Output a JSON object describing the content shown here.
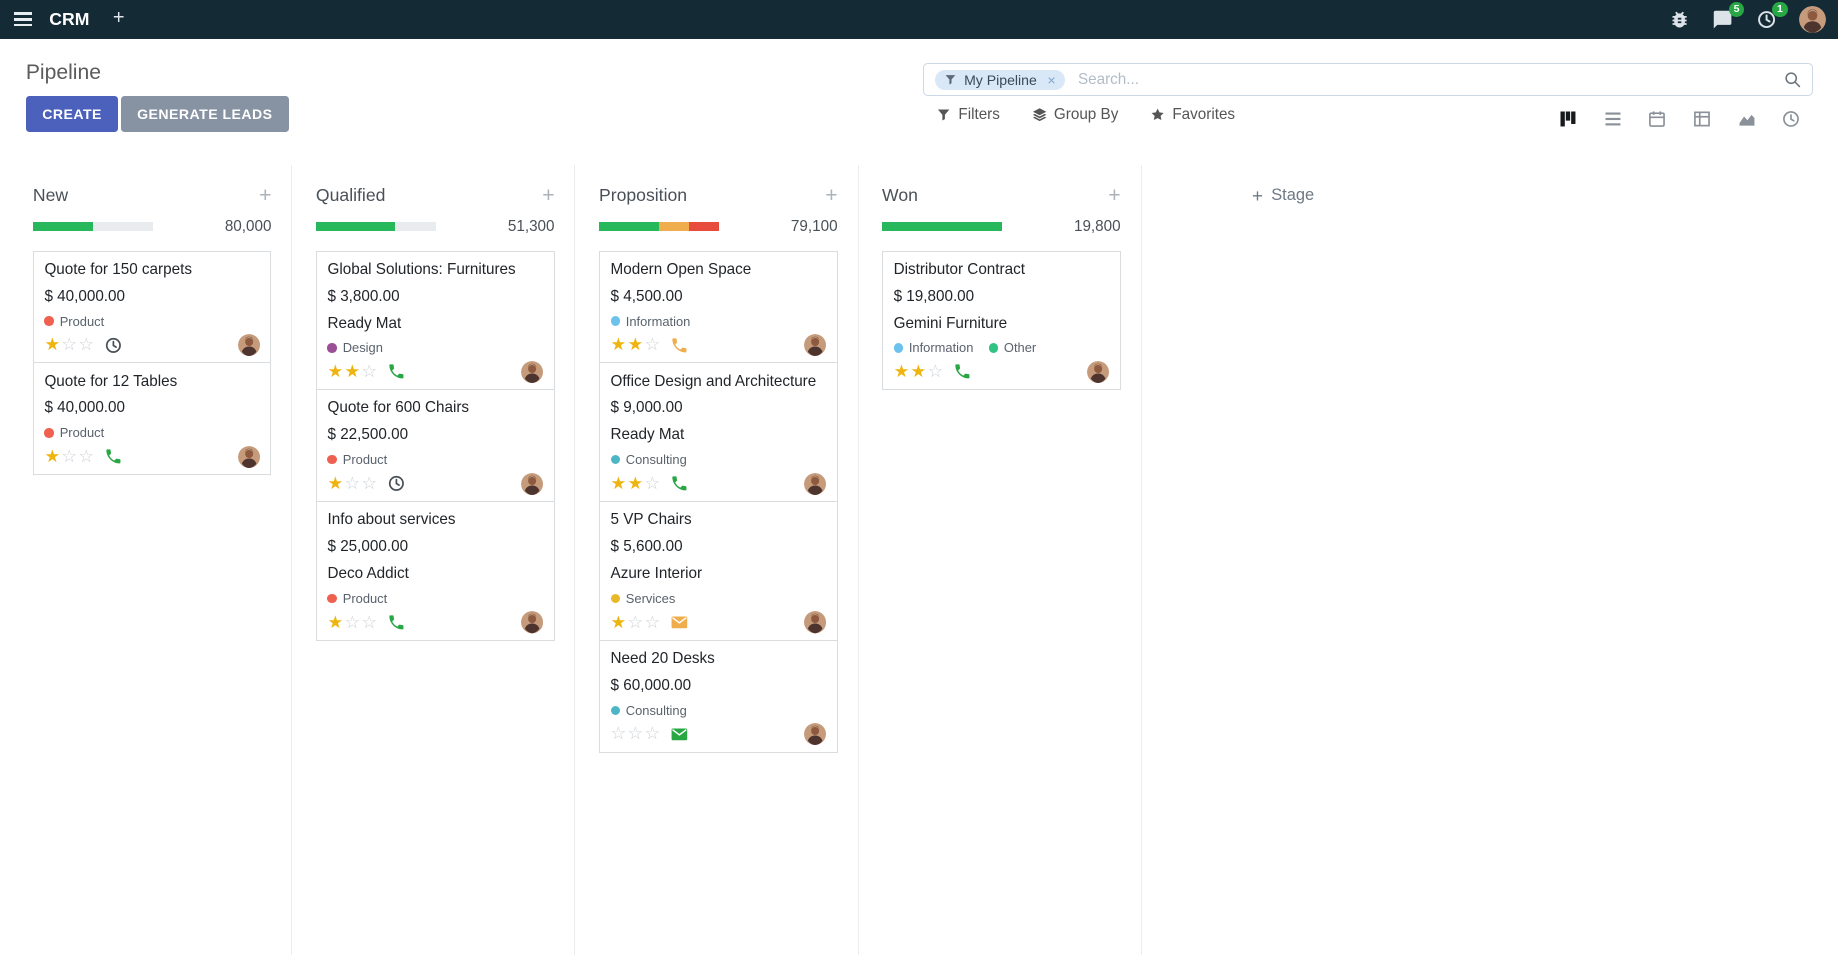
{
  "topbar": {
    "app_name": "CRM",
    "add_label": "+",
    "messages_badge": "5",
    "activities_badge": "1"
  },
  "control_panel": {
    "title": "Pipeline",
    "create_label": "CREATE",
    "generate_leads_label": "GENERATE LEADS",
    "filters_label": "Filters",
    "group_by_label": "Group By",
    "favorites_label": "Favorites",
    "search": {
      "facet_label": "My Pipeline",
      "remove_label": "×",
      "placeholder": "Search..."
    },
    "view_switcher": {
      "active": "kanban",
      "views": [
        "kanban",
        "list",
        "calendar",
        "pivot",
        "graph",
        "activity"
      ]
    }
  },
  "colors": {
    "topbar_bg": "#142b36",
    "create_bg": "#4b61bb",
    "generate_bg": "#8793a3",
    "badge_green": "#28a745",
    "star_gold": "#eeb511",
    "progress_track": "#e9ecef"
  },
  "kanban": {
    "add_stage_label": "Stage",
    "add_column_card_label": "+",
    "columns": [
      {
        "name": "New",
        "total": "80,000",
        "progress": [
          {
            "color": "#28b85c",
            "width": "50%"
          }
        ],
        "cards": [
          {
            "title": "Quote for 150 carpets",
            "amount": "$ 40,000.00",
            "tags": [
              {
                "label": "Product",
                "color": "#f06050"
              }
            ],
            "stars": 1,
            "activity": {
              "type": "clock",
              "color": "#495057"
            }
          },
          {
            "title": "Quote for 12 Tables",
            "amount": "$ 40,000.00",
            "tags": [
              {
                "label": "Product",
                "color": "#f06050"
              }
            ],
            "stars": 1,
            "activity": {
              "type": "phone",
              "color": "#28a745"
            }
          }
        ]
      },
      {
        "name": "Qualified",
        "total": "51,300",
        "progress": [
          {
            "color": "#28b85c",
            "width": "66%"
          }
        ],
        "cards": [
          {
            "title": "Global Solutions: Furnitures",
            "amount": "$ 3,800.00",
            "partner": "Ready Mat",
            "tags": [
              {
                "label": "Design",
                "color": "#9b4f96"
              }
            ],
            "stars": 2,
            "activity": {
              "type": "phone",
              "color": "#28a745"
            }
          },
          {
            "title": "Quote for 600 Chairs",
            "amount": "$ 22,500.00",
            "tags": [
              {
                "label": "Product",
                "color": "#f06050"
              }
            ],
            "stars": 1,
            "activity": {
              "type": "clock",
              "color": "#495057"
            }
          },
          {
            "title": "Info about services",
            "amount": "$ 25,000.00",
            "partner": "Deco Addict",
            "tags": [
              {
                "label": "Product",
                "color": "#f06050"
              }
            ],
            "stars": 1,
            "activity": {
              "type": "phone",
              "color": "#28a745"
            }
          }
        ]
      },
      {
        "name": "Proposition",
        "total": "79,100",
        "progress": [
          {
            "color": "#28b85c",
            "width": "50%"
          },
          {
            "color": "#f0ad4e",
            "width": "25%"
          },
          {
            "color": "#e74c3c",
            "width": "25%"
          }
        ],
        "cards": [
          {
            "title": "Modern Open Space",
            "amount": "$ 4,500.00",
            "tags": [
              {
                "label": "Information",
                "color": "#6cc1ed"
              }
            ],
            "stars": 2,
            "activity": {
              "type": "phone",
              "color": "#f0ad4e"
            }
          },
          {
            "title": "Office Design and Architecture",
            "amount": "$ 9,000.00",
            "partner": "Ready Mat",
            "tags": [
              {
                "label": "Consulting",
                "color": "#4db6c6"
              }
            ],
            "stars": 2,
            "activity": {
              "type": "phone",
              "color": "#28a745"
            }
          },
          {
            "title": "5 VP Chairs",
            "amount": "$ 5,600.00",
            "partner": "Azure Interior",
            "tags": [
              {
                "label": "Services",
                "color": "#e9b828"
              }
            ],
            "stars": 1,
            "activity": {
              "type": "envelope",
              "color": "#f0ad4e"
            }
          },
          {
            "title": "Need 20 Desks",
            "amount": "$ 60,000.00",
            "tags": [
              {
                "label": "Consulting",
                "color": "#4db6c6"
              }
            ],
            "stars": 0,
            "activity": {
              "type": "envelope",
              "color": "#28a745"
            }
          }
        ]
      },
      {
        "name": "Won",
        "total": "19,800",
        "progress": [
          {
            "color": "#28b85c",
            "width": "100%"
          }
        ],
        "cards": [
          {
            "title": "Distributor Contract",
            "amount": "$ 19,800.00",
            "partner": "Gemini Furniture",
            "tags": [
              {
                "label": "Information",
                "color": "#6cc1ed"
              },
              {
                "label": "Other",
                "color": "#30c381"
              }
            ],
            "stars": 2,
            "activity": {
              "type": "phone",
              "color": "#28a745"
            }
          }
        ]
      }
    ]
  }
}
